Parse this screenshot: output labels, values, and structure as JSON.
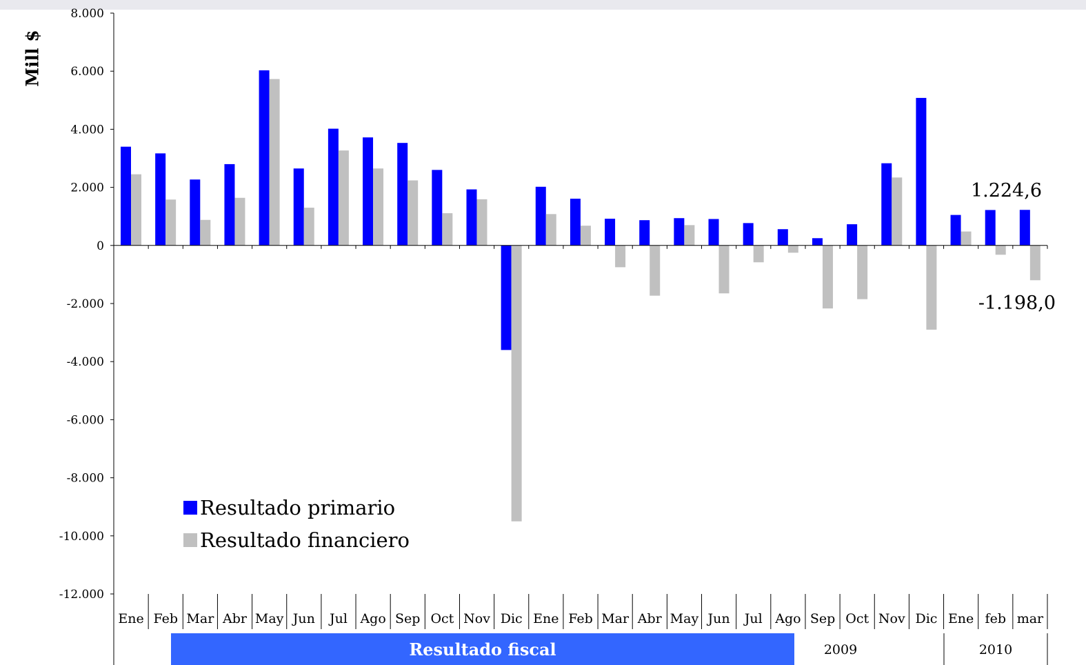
{
  "chart_data": {
    "type": "bar",
    "ylabel": "Mill $",
    "ylim": [
      -12000,
      8000
    ],
    "yticks": [
      "8.000",
      "6.000",
      "4.000",
      "2.000",
      "0",
      "-2.000",
      "-4.000",
      "-6.000",
      "-8.000",
      "-10.000",
      "-12.000"
    ],
    "ytick_values": [
      8000,
      6000,
      4000,
      2000,
      0,
      -2000,
      -4000,
      -6000,
      -8000,
      -10000,
      -12000
    ],
    "categories": [
      "Ene",
      "Feb",
      "Mar",
      "Abr",
      "May",
      "Jun",
      "Jul",
      "Ago",
      "Sep",
      "Oct",
      "Nov",
      "Dic",
      "Ene",
      "Feb",
      "Mar",
      "Abr",
      "May",
      "Jun",
      "Jul",
      "Ago",
      "Sep",
      "Oct",
      "Nov",
      "Dic",
      "Ene",
      "feb",
      "mar"
    ],
    "series": [
      {
        "name": "Resultado primario",
        "color": "#0000ff",
        "values": [
          3400,
          3170,
          2270,
          2800,
          6030,
          2650,
          4020,
          3720,
          3530,
          2600,
          1930,
          -3600,
          2020,
          1610,
          920,
          870,
          940,
          910,
          770,
          560,
          250,
          730,
          2830,
          5080,
          1050,
          1220,
          1224.6
        ]
      },
      {
        "name": "Resultado financiero",
        "color": "#c0c0c0",
        "values": [
          2450,
          1580,
          880,
          1640,
          5730,
          1300,
          3270,
          2650,
          2240,
          1110,
          1590,
          -9500,
          1080,
          680,
          -750,
          -1730,
          700,
          -1650,
          -580,
          -250,
          -2170,
          -1850,
          2340,
          -2900,
          480,
          -320,
          -1198.0
        ]
      }
    ],
    "annotations": [
      "1.224,6",
      "-1.198,0"
    ],
    "group_labels": [
      "Resultado fiscal",
      "2009",
      "2010"
    ],
    "banner_color": "#3366ff",
    "legend_placement": "bottom-left",
    "grid": false
  }
}
